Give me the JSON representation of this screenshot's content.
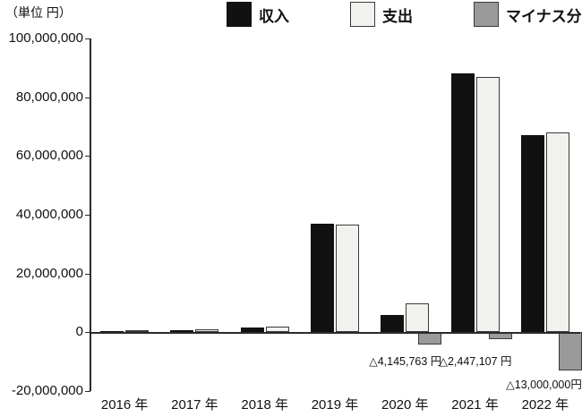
{
  "chart_data": {
    "type": "bar",
    "unit_label": "（単位 円）",
    "categories": [
      "2016 年",
      "2017 年",
      "2018 年",
      "2019 年",
      "2020 年",
      "2021 年",
      "2022 年"
    ],
    "series": [
      {
        "key": "income",
        "name": "収入",
        "color": "#111111",
        "values": [
          400000,
          800000,
          1500000,
          37000000,
          6000000,
          88000000,
          67000000
        ]
      },
      {
        "key": "expense",
        "name": "支出",
        "color": "#f1f1ee",
        "values": [
          600000,
          1000000,
          2000000,
          36500000,
          10000000,
          87000000,
          68000000
        ]
      },
      {
        "key": "minus",
        "name": "マイナス分",
        "color": "#9a9a9a",
        "values": [
          0,
          0,
          0,
          0,
          -4145763,
          -2447107,
          -13000000
        ]
      }
    ],
    "ylim": [
      -20000000,
      100000000
    ],
    "ytick_step": 20000000,
    "ytick_labels": [
      "100,000,000",
      "80,000,000",
      "60,000,000",
      "40,000,000",
      "20,000,000",
      "0",
      "-20,000,000"
    ],
    "legend_position": "top",
    "grid": "none",
    "annotations": [
      {
        "text": "△4,145,763 円",
        "category_index": 4
      },
      {
        "text": "△2,447,107 円",
        "category_index": 5
      },
      {
        "text": "△13,000,000円",
        "category_index": 6
      }
    ]
  }
}
